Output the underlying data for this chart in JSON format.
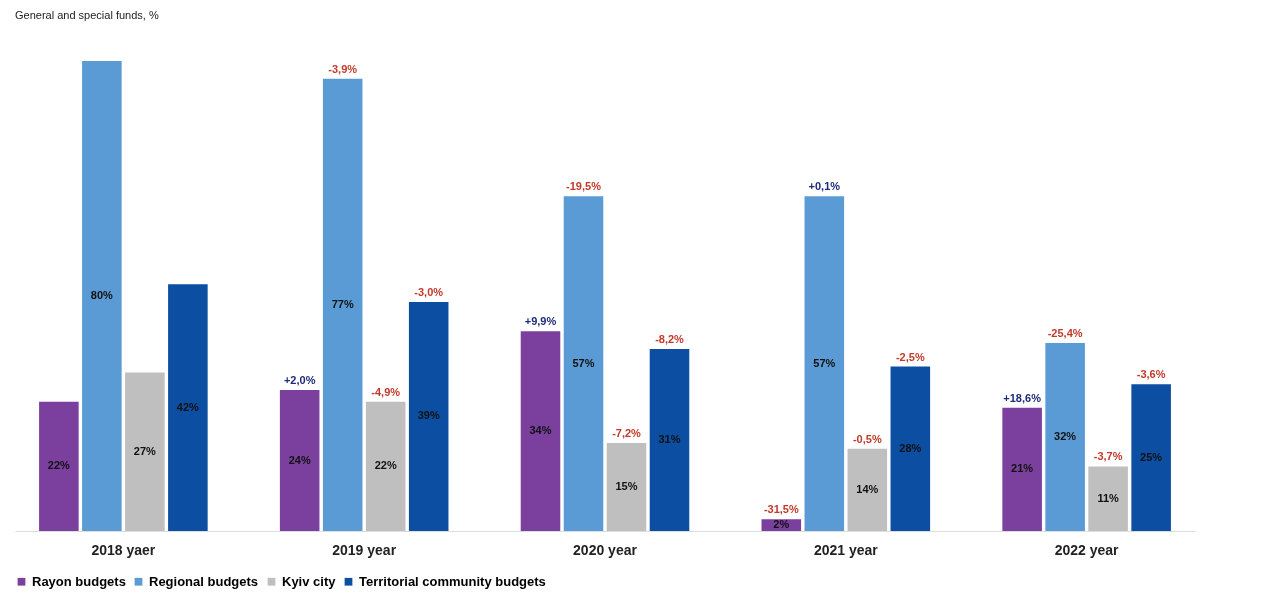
{
  "chart_data": {
    "type": "bar",
    "ylabel": "General and special funds, %",
    "categories": [
      "2018 yaer",
      "2019 year",
      "2020 year",
      "2021 year",
      "2022 year"
    ],
    "series": [
      {
        "name": "Rayon budgets",
        "color": "#7b3f9e",
        "values": [
          22,
          24,
          34,
          2,
          21
        ],
        "value_labels": [
          "22%",
          "24%",
          "34%",
          "2%",
          "21%"
        ]
      },
      {
        "name": "Regional budgets",
        "color": "#5b9bd5",
        "values": [
          80,
          77,
          57,
          57,
          32
        ],
        "value_labels": [
          "80%",
          "77%",
          "57%",
          "57%",
          "32%"
        ]
      },
      {
        "name": "Kyiv city",
        "color": "#bfbfbf",
        "values": [
          27,
          22,
          15,
          14,
          11
        ],
        "value_labels": [
          "27%",
          "22%",
          "15%",
          "14%",
          "11%"
        ]
      },
      {
        "name": "Territorial community budgets",
        "color": "#0b4ea2",
        "values": [
          42,
          39,
          31,
          28,
          25
        ],
        "value_labels": [
          "42%",
          "39%",
          "31%",
          "28%",
          "25%"
        ]
      }
    ],
    "annotations": [
      "+2,0%",
      "-3,9%",
      "-4,9%",
      "-3,0%",
      "+9,9%",
      "-19,5%",
      "-7,2%",
      "-8,2%",
      "-31,5%",
      "+0,1%",
      "-0,5%",
      "-2,5%",
      "+18,6%",
      "-25,4%",
      "-3,7%",
      "-3,6%"
    ],
    "legend": "bottom",
    "grid": false
  }
}
